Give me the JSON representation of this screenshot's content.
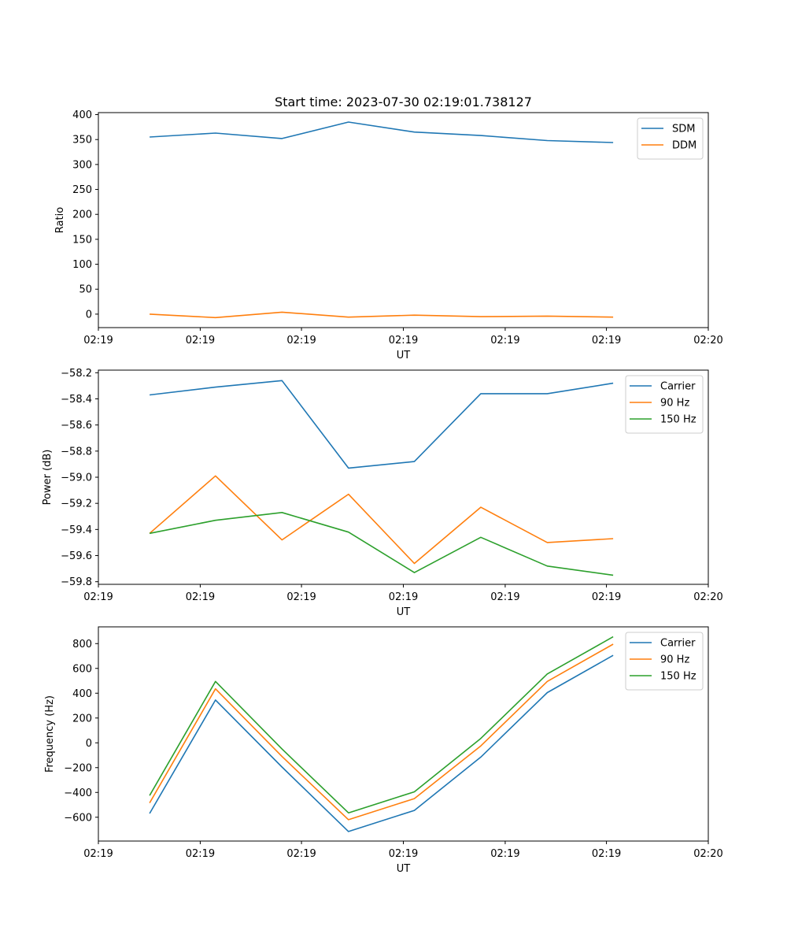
{
  "chart_data": [
    {
      "type": "line",
      "title": "Start time: 2023-07-30 02:19:01.738127",
      "xlabel": "UT",
      "ylabel": "Ratio",
      "xlim": [
        0,
        1
      ],
      "ylim": [
        -27,
        404
      ],
      "x": [
        0.084,
        0.192,
        0.301,
        0.41,
        0.518,
        0.627,
        0.736,
        0.844
      ],
      "x_ticks": [
        0,
        0.167,
        0.333,
        0.5,
        0.667,
        0.833,
        1
      ],
      "x_tick_labels": [
        "02:19",
        "02:19",
        "02:19",
        "02:19",
        "02:19",
        "02:19",
        "02:20"
      ],
      "y_ticks": [
        0,
        50,
        100,
        150,
        200,
        250,
        300,
        350,
        400
      ],
      "y_tick_labels": [
        "0",
        "50",
        "100",
        "150",
        "200",
        "250",
        "300",
        "350",
        "400"
      ],
      "legend_position": "upper-right",
      "series": [
        {
          "name": "SDM",
          "color": "#1f77b4",
          "values": [
            355,
            363,
            352,
            385,
            365,
            358,
            348,
            344
          ]
        },
        {
          "name": "DDM",
          "color": "#ff7f0e",
          "values": [
            0,
            -7,
            4,
            -6,
            -2,
            -5,
            -4,
            -6
          ]
        }
      ]
    },
    {
      "type": "line",
      "title": "",
      "xlabel": "UT",
      "ylabel": "Power (dB)",
      "xlim": [
        0,
        1
      ],
      "ylim": [
        -59.82,
        -58.18
      ],
      "x": [
        0.084,
        0.192,
        0.301,
        0.41,
        0.518,
        0.627,
        0.736,
        0.844
      ],
      "x_ticks": [
        0,
        0.167,
        0.333,
        0.5,
        0.667,
        0.833,
        1
      ],
      "x_tick_labels": [
        "02:19",
        "02:19",
        "02:19",
        "02:19",
        "02:19",
        "02:19",
        "02:20"
      ],
      "y_ticks": [
        -59.8,
        -59.6,
        -59.4,
        -59.2,
        -59.0,
        -58.8,
        -58.6,
        -58.4,
        -58.2
      ],
      "y_tick_labels": [
        "−59.8",
        "−59.6",
        "−59.4",
        "−59.2",
        "−59.0",
        "−58.8",
        "−58.6",
        "−58.4",
        "−58.2"
      ],
      "legend_position": "upper-right",
      "series": [
        {
          "name": "Carrier",
          "color": "#1f77b4",
          "values": [
            -58.37,
            -58.31,
            -58.26,
            -58.93,
            -58.88,
            -58.36,
            -58.36,
            -58.28
          ]
        },
        {
          "name": "90 Hz",
          "color": "#ff7f0e",
          "values": [
            -59.43,
            -58.99,
            -59.48,
            -59.13,
            -59.66,
            -59.23,
            -59.5,
            -59.47
          ]
        },
        {
          "name": "150 Hz",
          "color": "#2ca02c",
          "values": [
            -59.43,
            -59.33,
            -59.27,
            -59.42,
            -59.73,
            -59.46,
            -59.68,
            -59.75
          ]
        }
      ]
    },
    {
      "type": "line",
      "title": "",
      "xlabel": "UT",
      "ylabel": "Frequency (Hz)",
      "xlim": [
        0,
        1
      ],
      "ylim": [
        -792,
        935
      ],
      "x": [
        0.084,
        0.192,
        0.301,
        0.41,
        0.518,
        0.627,
        0.736,
        0.844
      ],
      "x_ticks": [
        0,
        0.167,
        0.333,
        0.5,
        0.667,
        0.833,
        1
      ],
      "x_tick_labels": [
        "02:19",
        "02:19",
        "02:19",
        "02:19",
        "02:19",
        "02:19",
        "02:20"
      ],
      "y_ticks": [
        -600,
        -400,
        -200,
        0,
        200,
        400,
        600,
        800
      ],
      "y_tick_labels": [
        "−600",
        "−400",
        "−200",
        "0",
        "200",
        "400",
        "600",
        "800"
      ],
      "legend_position": "upper-right",
      "series": [
        {
          "name": "Carrier",
          "color": "#1f77b4",
          "values": [
            -570,
            345,
            -195,
            -715,
            -545,
            -115,
            405,
            705
          ]
        },
        {
          "name": "90 Hz",
          "color": "#ff7f0e",
          "values": [
            -485,
            435,
            -110,
            -620,
            -450,
            -25,
            495,
            795
          ]
        },
        {
          "name": "150 Hz",
          "color": "#2ca02c",
          "values": [
            -425,
            495,
            -50,
            -565,
            -395,
            35,
            555,
            855
          ]
        }
      ]
    }
  ]
}
